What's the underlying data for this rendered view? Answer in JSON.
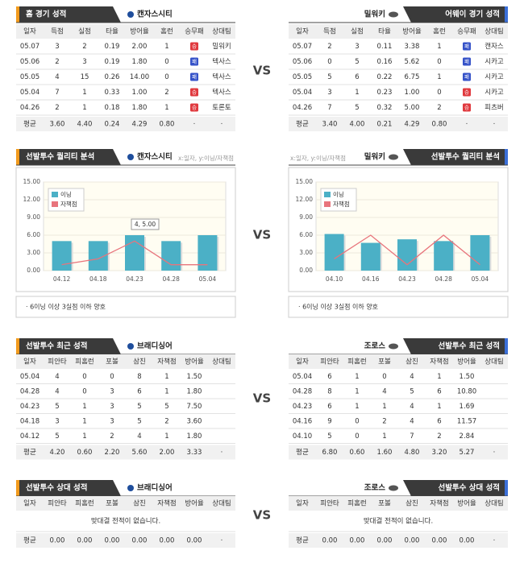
{
  "sections": [
    {
      "vs": "VS",
      "left": {
        "title": "홈 경기 성적",
        "team": "캔자스시티",
        "columns": [
          "일자",
          "득점",
          "실점",
          "타율",
          "방어율",
          "홈런",
          "승무패",
          "상대팀"
        ],
        "rows": [
          [
            "05.07",
            "3",
            "2",
            "0.19",
            "2.00",
            "1",
            "승",
            "밀워키"
          ],
          [
            "05.06",
            "2",
            "3",
            "0.19",
            "1.80",
            "0",
            "패",
            "텍사스"
          ],
          [
            "05.05",
            "4",
            "15",
            "0.26",
            "14.00",
            "0",
            "패",
            "텍사스"
          ],
          [
            "05.04",
            "7",
            "1",
            "0.33",
            "1.00",
            "2",
            "승",
            "텍사스"
          ],
          [
            "04.26",
            "2",
            "1",
            "0.18",
            "1.80",
            "1",
            "승",
            "토론토"
          ]
        ],
        "average": [
          "평균",
          "3.60",
          "4.40",
          "0.24",
          "4.29",
          "0.80",
          "·",
          "·"
        ]
      },
      "right": {
        "title": "어웨이 경기 성적",
        "team": "밀워키",
        "columns": [
          "일자",
          "득점",
          "실점",
          "타율",
          "방어율",
          "홈런",
          "승무패",
          "상대팀"
        ],
        "rows": [
          [
            "05.07",
            "2",
            "3",
            "0.11",
            "3.38",
            "1",
            "패",
            "캔자스"
          ],
          [
            "05.06",
            "0",
            "5",
            "0.16",
            "5.62",
            "0",
            "패",
            "시카고"
          ],
          [
            "05.05",
            "5",
            "6",
            "0.22",
            "6.75",
            "1",
            "패",
            "시카고"
          ],
          [
            "05.04",
            "3",
            "1",
            "0.23",
            "1.00",
            "0",
            "승",
            "시카고"
          ],
          [
            "04.26",
            "7",
            "5",
            "0.32",
            "5.00",
            "2",
            "승",
            "피츠버"
          ]
        ],
        "average": [
          "평균",
          "3.40",
          "4.00",
          "0.21",
          "4.29",
          "0.80",
          "·",
          "·"
        ]
      },
      "result_colors": {
        "승": "#e0393e",
        "패": "#3552c8"
      }
    },
    {
      "vs": "VS",
      "left": {
        "title": "선발투수 퀄리티 분석",
        "team": "캔자스시티",
        "axis_note": "x:일자, y:이닝/자책점",
        "chart": {
          "type": "bar",
          "categories": [
            "04.12",
            "04.18",
            "04.23",
            "04.28",
            "05.04"
          ],
          "series": [
            {
              "name": "이닝",
              "color": "#4bb0c6",
              "values": [
                5,
                5,
                6,
                5,
                6
              ]
            },
            {
              "name": "자책점",
              "color": "#e8747c",
              "values": [
                1,
                2,
                5,
                1,
                1
              ]
            }
          ],
          "ylim": [
            0,
            15
          ],
          "yticks": [
            {
              "value": 0,
              "label": "0.00"
            },
            {
              "value": 3,
              "label": "3.00"
            },
            {
              "value": 6,
              "label": "6.00"
            },
            {
              "value": 9,
              "label": "9.00"
            },
            {
              "value": 12,
              "label": "12.00"
            },
            {
              "value": 15,
              "label": "15.00"
            }
          ],
          "annotation": "4, 5.00"
        },
        "note": "· 6이닝 이상 3실점 이하 양호"
      },
      "right": {
        "title": "선발투수 퀄리티 분석",
        "team": "밀워키",
        "axis_note": "x:일자, y:이닝/자책점",
        "chart": {
          "type": "bar",
          "categories": [
            "04.10",
            "04.16",
            "04.23",
            "04.28",
            "05.04"
          ],
          "series": [
            {
              "name": "이닝",
              "color": "#4bb0c6",
              "values": [
                6.2,
                4.7,
                5.3,
                5,
                6
              ]
            },
            {
              "name": "자책점",
              "color": "#e8747c",
              "values": [
                2,
                6,
                1,
                6,
                1
              ]
            }
          ],
          "ylim": [
            0,
            15
          ],
          "yticks": [
            {
              "value": 0,
              "label": "0.00"
            },
            {
              "value": 3,
              "label": "3.00"
            },
            {
              "value": 6,
              "label": "6.00"
            },
            {
              "value": 9,
              "label": "9.00"
            },
            {
              "value": 12,
              "label": "12.00"
            },
            {
              "value": 15,
              "label": "15.00"
            }
          ]
        },
        "note": "· 6이닝 이상 3실점 이하 양호"
      }
    },
    {
      "vs": "VS",
      "left": {
        "title": "선발투수 최근 성적",
        "team": "브래디싱어",
        "columns": [
          "일자",
          "피안타",
          "피홈런",
          "포볼",
          "삼진",
          "자책점",
          "방어율",
          "상대팀"
        ],
        "rows": [
          [
            "05.04",
            "4",
            "0",
            "0",
            "8",
            "1",
            "1.50"
          ],
          [
            "04.28",
            "4",
            "0",
            "3",
            "6",
            "1",
            "1.80"
          ],
          [
            "04.23",
            "5",
            "1",
            "3",
            "5",
            "5",
            "7.50"
          ],
          [
            "04.18",
            "3",
            "1",
            "3",
            "5",
            "2",
            "3.60"
          ],
          [
            "04.12",
            "5",
            "1",
            "2",
            "4",
            "1",
            "1.80"
          ]
        ],
        "average": [
          "평균",
          "4.20",
          "0.60",
          "2.20",
          "5.60",
          "2.00",
          "3.33",
          "·"
        ]
      },
      "right": {
        "title": "선발투수 최근 성적",
        "team": "조로스",
        "columns": [
          "일자",
          "피안타",
          "피홈런",
          "포볼",
          "삼진",
          "자책점",
          "방어율",
          "상대팀"
        ],
        "rows": [
          [
            "05.04",
            "6",
            "1",
            "0",
            "4",
            "1",
            "1.50"
          ],
          [
            "04.28",
            "8",
            "1",
            "4",
            "5",
            "6",
            "10.80"
          ],
          [
            "04.23",
            "6",
            "1",
            "1",
            "4",
            "1",
            "1.69"
          ],
          [
            "04.16",
            "9",
            "0",
            "2",
            "4",
            "6",
            "11.57"
          ],
          [
            "04.10",
            "5",
            "0",
            "1",
            "7",
            "2",
            "2.84"
          ]
        ],
        "average": [
          "평균",
          "6.80",
          "0.60",
          "1.60",
          "4.80",
          "3.20",
          "5.27",
          "·"
        ]
      }
    },
    {
      "vs": "VS",
      "left": {
        "title": "선발투수 상대 성적",
        "team": "브래디싱어",
        "columns": [
          "일자",
          "피안타",
          "피홈런",
          "포볼",
          "삼진",
          "자책점",
          "방어율",
          "상대팀"
        ],
        "message": "맞대결 전적이 없습니다.",
        "average": [
          "평균",
          "0.00",
          "0.00",
          "0.00",
          "0.00",
          "0.00",
          "0.00",
          "·"
        ]
      },
      "right": {
        "title": "선발투수 상대 성적",
        "team": "조로스",
        "columns": [
          "일자",
          "피안타",
          "피홈런",
          "포볼",
          "삼진",
          "자책점",
          "방어율",
          "상대팀"
        ],
        "message": "맞대결 전적이 없습니다.",
        "average": [
          "평균",
          "0.00",
          "0.00",
          "0.00",
          "0.00",
          "0.00",
          "0.00",
          "·"
        ]
      }
    }
  ]
}
